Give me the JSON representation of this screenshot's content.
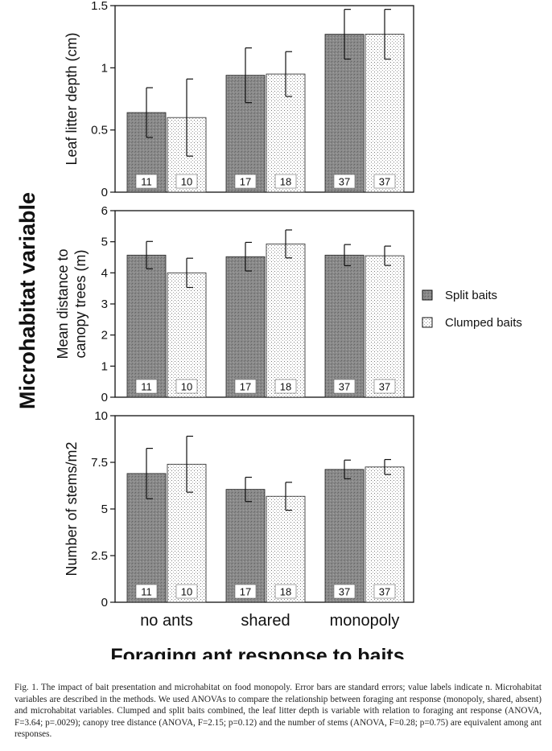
{
  "figure": {
    "shared_ylabel": "Microhabitat variable",
    "shared_xlabel": "Foraging ant response to baits",
    "legend": [
      {
        "label": "Split baits",
        "pattern": "dark-speckle"
      },
      {
        "label": "Clumped baits",
        "pattern": "light-dots"
      }
    ],
    "caption": "Fig. 1. The impact of bait presentation and microhabitat on food monopoly. Error bars are standard errors; value labels indicate n. Microhabitat variables are described in the methods. We used ANOVAs to compare the relationship between foraging ant response (monopoly, shared, absent) and microhabitat variables. Clumped and split baits combined, the leaf litter depth is variable with relation to foraging ant response (ANOVA, F=3.64; p=.0029); canopy tree distance (ANOVA, F=2.15; p=0.12) and the number of stems (ANOVA, F=0.28; p=0.75) are equivalent among ant responses."
  },
  "colors": {
    "split_fill": "#8a8a8a",
    "clumped_fill": "#e6e6e6",
    "axis": "#111111"
  },
  "chart_data": [
    {
      "type": "bar",
      "ylabel": "Leaf litter depth (cm)",
      "ylim": [
        0,
        1.5
      ],
      "yticks": [
        "0",
        "0.5",
        "1",
        "1.5"
      ],
      "categories": [
        "no ants",
        "shared",
        "monopoly"
      ],
      "series": [
        {
          "name": "Split baits",
          "values": [
            0.64,
            0.94,
            1.27
          ],
          "errors": [
            0.2,
            0.22,
            0.2
          ],
          "n": [
            "11",
            "17",
            "37"
          ]
        },
        {
          "name": "Clumped baits",
          "values": [
            0.6,
            0.95,
            1.27
          ],
          "errors": [
            0.31,
            0.18,
            0.2
          ],
          "n": [
            "10",
            "18",
            "37"
          ]
        }
      ]
    },
    {
      "type": "bar",
      "ylabel": "Mean distance to canopy trees (m)",
      "ylabel_lines": [
        "Mean distance to",
        "canopy trees (m)"
      ],
      "ylim": [
        0,
        6
      ],
      "yticks": [
        "0",
        "1",
        "2",
        "3",
        "4",
        "5",
        "6"
      ],
      "categories": [
        "no ants",
        "shared",
        "monopoly"
      ],
      "series": [
        {
          "name": "Split baits",
          "values": [
            4.57,
            4.52,
            4.57
          ],
          "errors": [
            0.44,
            0.46,
            0.34
          ],
          "n": [
            "11",
            "17",
            "37"
          ]
        },
        {
          "name": "Clumped baits",
          "values": [
            4.0,
            4.93,
            4.55
          ],
          "errors": [
            0.47,
            0.45,
            0.31
          ],
          "n": [
            "10",
            "18",
            "37"
          ]
        }
      ]
    },
    {
      "type": "bar",
      "ylabel": "Number of stems/m2",
      "ylim": [
        0,
        10
      ],
      "yticks": [
        "0",
        "2.5",
        "5",
        "7.5",
        "10"
      ],
      "xticks": [
        "no ants",
        "shared",
        "monopoly"
      ],
      "categories": [
        "no ants",
        "shared",
        "monopoly"
      ],
      "series": [
        {
          "name": "Split baits",
          "values": [
            6.9,
            6.05,
            7.12
          ],
          "errors": [
            1.35,
            0.65,
            0.5
          ],
          "n": [
            "11",
            "17",
            "37"
          ]
        },
        {
          "name": "Clumped baits",
          "values": [
            7.4,
            5.68,
            7.25
          ],
          "errors": [
            1.5,
            0.75,
            0.4
          ],
          "n": [
            "10",
            "18",
            "37"
          ]
        }
      ]
    }
  ]
}
